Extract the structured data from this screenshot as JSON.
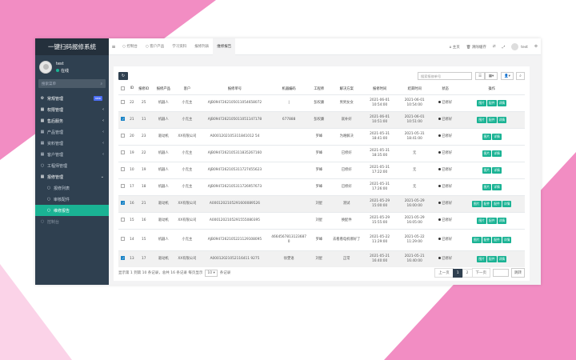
{
  "colors": {
    "pink": "#f28dc3",
    "sidebar": "#2f4050",
    "accent": "#1ab394"
  },
  "sidebar": {
    "title": "一键扫码报修系统",
    "user_name": "test",
    "user_status": "在线",
    "search_placeholder": "搜索菜单",
    "badge_new": "new",
    "items": [
      {
        "label": "常规管理",
        "icon": "gear-icon"
      },
      {
        "label": "权限管理",
        "icon": "grid-icon"
      },
      {
        "label": "售后服务",
        "icon": "grid-icon"
      },
      {
        "label": "产品管理",
        "icon": "grid-icon"
      },
      {
        "label": "资料管理",
        "icon": "grid-icon"
      },
      {
        "label": "客户管理",
        "icon": "grid-icon"
      },
      {
        "label": "工程师管理",
        "icon": "circle-icon"
      },
      {
        "label": "报修管理",
        "icon": "grid-icon"
      },
      {
        "label": "报修列表",
        "icon": "circle-icon"
      },
      {
        "label": "审核配件",
        "icon": "circle-icon"
      },
      {
        "label": "维修报告",
        "icon": "circle-icon"
      },
      {
        "label": "控制台",
        "icon": "circle-icon"
      }
    ]
  },
  "topbar": {
    "tabs": [
      "控制台",
      "客户产品",
      "学习资料",
      "报修列表",
      "维修报告"
    ],
    "home": "主页",
    "clear_cache": "清除缓存",
    "user": "test"
  },
  "toolbar": {
    "search_placeholder": "搜索报修单号"
  },
  "table": {
    "headers": [
      "ID",
      "报修ID",
      "报修产品",
      "客户",
      "报修单号",
      "机器编码",
      "工程师",
      "解决方案",
      "报修时间",
      "结束时间",
      "状态",
      "操作"
    ],
    "rows": [
      {
        "checked": false,
        "id": "22",
        "rid": "25",
        "product": "机器人",
        "customer": "小无主",
        "no": "AJB0947262105011054658072",
        "code": "|",
        "eng": "彭权廉",
        "solution": "男男女女",
        "time": "2021-06-01 10:54:00",
        "end": "2021-06-01 10:54:00",
        "status": "已修好",
        "ops": [
          "图片",
          "配件",
          "详情"
        ]
      },
      {
        "checked": true,
        "id": "21",
        "rid": "11",
        "product": "机器人",
        "customer": "小无主",
        "no": "AJB0947262105011051147178",
        "code": "677888",
        "eng": "彭权廉",
        "solution": "就补好",
        "time": "2021-06-01 10:51:00",
        "end": "2021-06-01 10:51:00",
        "status": "已修好",
        "ops": [
          "图片",
          "配件",
          "详情"
        ]
      },
      {
        "checked": false,
        "id": "20",
        "rid": "23",
        "product": "驱动机",
        "customer": "XX有限公司",
        "no": "A0001202105311841012 54",
        "code": "",
        "eng": "罗峰",
        "solution": "为难解决",
        "time": "2021-05-31 18:41:00",
        "end": "2021-05-31 18:41:00",
        "status": "已修好",
        "ops": [
          "图片",
          "详情"
        ]
      },
      {
        "checked": false,
        "id": "19",
        "rid": "22",
        "product": "机器人",
        "customer": "小无主",
        "no": "AJB0947262105311835267160",
        "code": "",
        "eng": "罗峰",
        "solution": "已修好",
        "time": "2021-05-31 18:35:00",
        "end": "无",
        "status": "已修好",
        "ops": [
          "图片",
          "详情"
        ]
      },
      {
        "checked": false,
        "id": "10",
        "rid": "19",
        "product": "机器人",
        "customer": "小无主",
        "no": "AJB0947262105311727455623",
        "code": "",
        "eng": "罗峰",
        "solution": "已修好",
        "time": "2021-05-31 17:22:00",
        "end": "无",
        "status": "已修好",
        "ops": [
          "图片",
          "详情"
        ]
      },
      {
        "checked": false,
        "id": "17",
        "rid": "18",
        "product": "机器人",
        "customer": "小无主",
        "no": "AJB0947262105311726957673",
        "code": "",
        "eng": "罗峰",
        "solution": "已修好",
        "time": "2021-05-31 17:26:00",
        "end": "无",
        "status": "已修好",
        "ops": [
          "图片",
          "详情"
        ]
      },
      {
        "checked": true,
        "id": "16",
        "rid": "21",
        "product": "驱动机",
        "customer": "XX有限公司",
        "no": "A0001202105291600089526",
        "code": "",
        "eng": "刘星",
        "solution": "测试",
        "time": "2021-05-29 15:00:00",
        "end": "2021-05-29 16:00:00",
        "status": "已修好",
        "ops": [
          "图片",
          "配件",
          "配件",
          "详情"
        ]
      },
      {
        "checked": false,
        "id": "15",
        "rid": "16",
        "product": "驱动机",
        "customer": "XX有限公司",
        "no": "A0001202105291555080395",
        "code": "",
        "eng": "刘星",
        "solution": "换配件",
        "time": "2021-05-29 15:55:00",
        "end": "2021-05-29 16:05:00",
        "status": "已修好",
        "ops": [
          "图片",
          "配件",
          "详情"
        ]
      },
      {
        "checked": false,
        "id": "14",
        "rid": "15",
        "product": "机器人",
        "customer": "小无主",
        "no": "AJB0947262105221129108095",
        "code": "4664567813123687​0",
        "eng": "罗峰",
        "solution": "去看看电机哪好了",
        "time": "2021-05-22 11:29:00",
        "end": "2021-05-22 11:29:00",
        "status": "已修好",
        "ops": [
          "图片",
          "配件",
          "配件",
          "详情"
        ]
      },
      {
        "checked": true,
        "id": "13",
        "rid": "17",
        "product": "驱动机",
        "customer": "XX有限公司",
        "no": "A00012021052116411 9275",
        "code": "徐雯语",
        "eng": "刘星",
        "solution": "正常",
        "time": "2021-05-21 16:40:00",
        "end": "2021-05-21 16:40:00",
        "status": "已修好",
        "ops": [
          "图片",
          "配件",
          "详情"
        ]
      }
    ]
  },
  "footer": {
    "info": "显示第 1 到第 10 条记录，总共 16 条记录 每页显示",
    "page_size": "10",
    "suffix": "条记录",
    "prev": "上一页",
    "pages": [
      "1",
      "2"
    ],
    "next": "下一页",
    "jump": "跳转"
  }
}
